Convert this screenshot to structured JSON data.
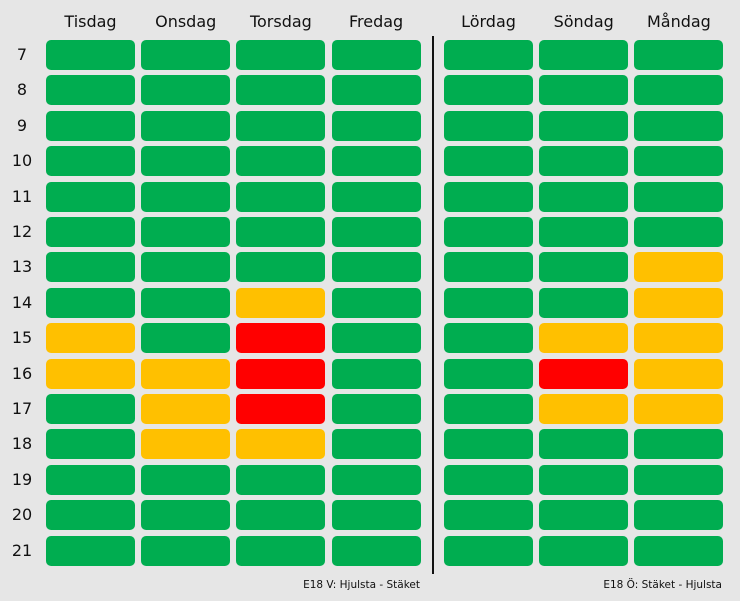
{
  "colors": {
    "free": "#00ad50",
    "slow": "#ffc000",
    "jam": "#ff0000"
  },
  "chart_data": {
    "type": "heatmap",
    "hours": [
      "7",
      "8",
      "9",
      "10",
      "11",
      "12",
      "13",
      "14",
      "15",
      "16",
      "17",
      "18",
      "19",
      "20",
      "21"
    ],
    "panels": [
      {
        "caption": "E18 V: Hjulsta - Stäket",
        "days": [
          "Tisdag",
          "Onsdag",
          "Torsdag",
          "Fredag"
        ],
        "levels": [
          [
            "free",
            "free",
            "free",
            "free"
          ],
          [
            "free",
            "free",
            "free",
            "free"
          ],
          [
            "free",
            "free",
            "free",
            "free"
          ],
          [
            "free",
            "free",
            "free",
            "free"
          ],
          [
            "free",
            "free",
            "free",
            "free"
          ],
          [
            "free",
            "free",
            "free",
            "free"
          ],
          [
            "free",
            "free",
            "free",
            "free"
          ],
          [
            "free",
            "free",
            "slow",
            "free"
          ],
          [
            "slow",
            "free",
            "jam",
            "free"
          ],
          [
            "slow",
            "slow",
            "jam",
            "free"
          ],
          [
            "free",
            "slow",
            "jam",
            "free"
          ],
          [
            "free",
            "slow",
            "slow",
            "free"
          ],
          [
            "free",
            "free",
            "free",
            "free"
          ],
          [
            "free",
            "free",
            "free",
            "free"
          ],
          [
            "free",
            "free",
            "free",
            "free"
          ]
        ]
      },
      {
        "caption": "E18 Ö: Stäket - Hjulsta",
        "days": [
          "Lördag",
          "Söndag",
          "Måndag"
        ],
        "levels": [
          [
            "free",
            "free",
            "free"
          ],
          [
            "free",
            "free",
            "free"
          ],
          [
            "free",
            "free",
            "free"
          ],
          [
            "free",
            "free",
            "free"
          ],
          [
            "free",
            "free",
            "free"
          ],
          [
            "free",
            "free",
            "free"
          ],
          [
            "free",
            "free",
            "slow"
          ],
          [
            "free",
            "free",
            "slow"
          ],
          [
            "free",
            "slow",
            "slow"
          ],
          [
            "free",
            "jam",
            "slow"
          ],
          [
            "free",
            "slow",
            "slow"
          ],
          [
            "free",
            "free",
            "free"
          ],
          [
            "free",
            "free",
            "free"
          ],
          [
            "free",
            "free",
            "free"
          ],
          [
            "free",
            "free",
            "free"
          ]
        ]
      }
    ]
  }
}
